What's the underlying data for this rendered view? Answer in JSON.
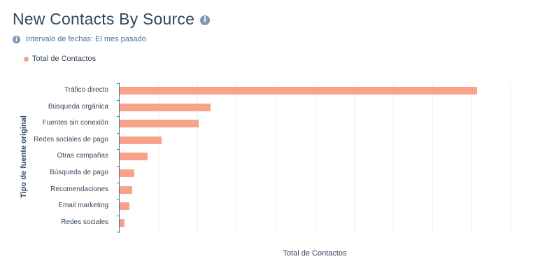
{
  "header": {
    "title": "New Contacts By Source",
    "title_icon": "info-icon",
    "subtitle_icon": "info-icon",
    "subtitle": "Intervalo de fechas: El mes pasado"
  },
  "colors": {
    "bar": "#f8a28a",
    "axis": "#516f90",
    "grid": "#eef0f3",
    "text": "#33475b"
  },
  "chart_data": {
    "type": "bar",
    "orientation": "horizontal",
    "title": "New Contacts By Source",
    "subtitle": "Intervalo de fechas: El mes pasado",
    "xlabel": "Total de Contactos",
    "ylabel": "Tipo de fuente original",
    "legend": [
      "Total de Contactos"
    ],
    "legend_position": "top-left",
    "grid": true,
    "x_tick_labels_visible": false,
    "value_units": "relative (gridline units; no tick labels shown)",
    "categories": [
      "Tráfico directo",
      "Búsqueda orgánica",
      "Fuentes sin conexión",
      "Redes sociales de pago",
      "Otras campañas",
      "Búsqueda de pago",
      "Recomendaciones",
      "Email marketing",
      "Redes sociales"
    ],
    "series": [
      {
        "name": "Total de Contactos",
        "values": [
          9.1,
          2.3,
          2.0,
          1.05,
          0.7,
          0.35,
          0.3,
          0.23,
          0.1
        ]
      }
    ],
    "xlim": [
      0,
      10.7
    ]
  }
}
